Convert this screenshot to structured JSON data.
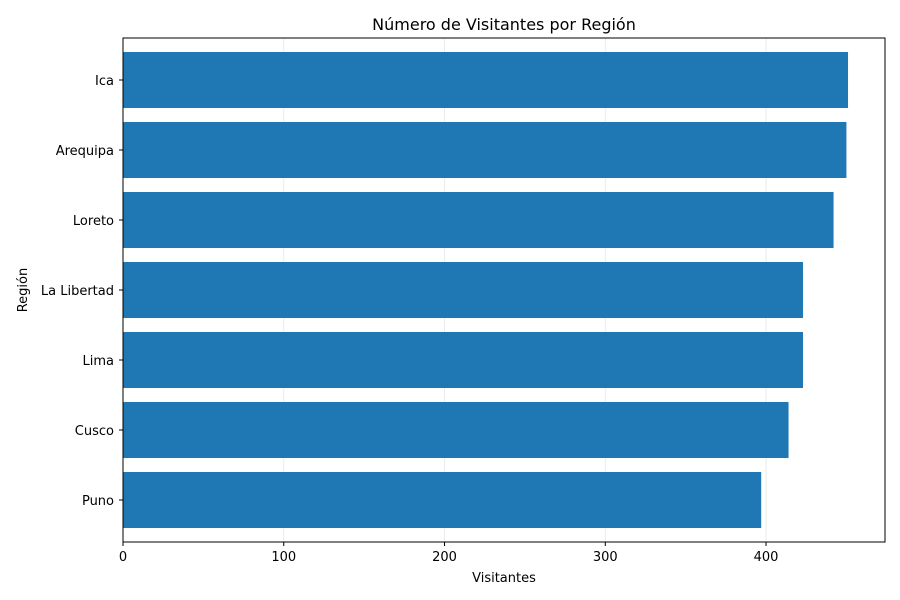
{
  "chart_data": {
    "type": "bar",
    "orientation": "horizontal",
    "title": "Número de Visitantes por Región",
    "xlabel": "Visitantes",
    "ylabel": "Región",
    "categories": [
      "Puno",
      "Cusco",
      "Lima",
      "La Libertad",
      "Loreto",
      "Arequipa",
      "Ica"
    ],
    "values": [
      397,
      414,
      423,
      423,
      442,
      450,
      451
    ],
    "xlim": [
      0,
      474
    ],
    "xticks": [
      0,
      100,
      200,
      300,
      400
    ],
    "grid": "x",
    "bar_color": "#1f77b4"
  }
}
